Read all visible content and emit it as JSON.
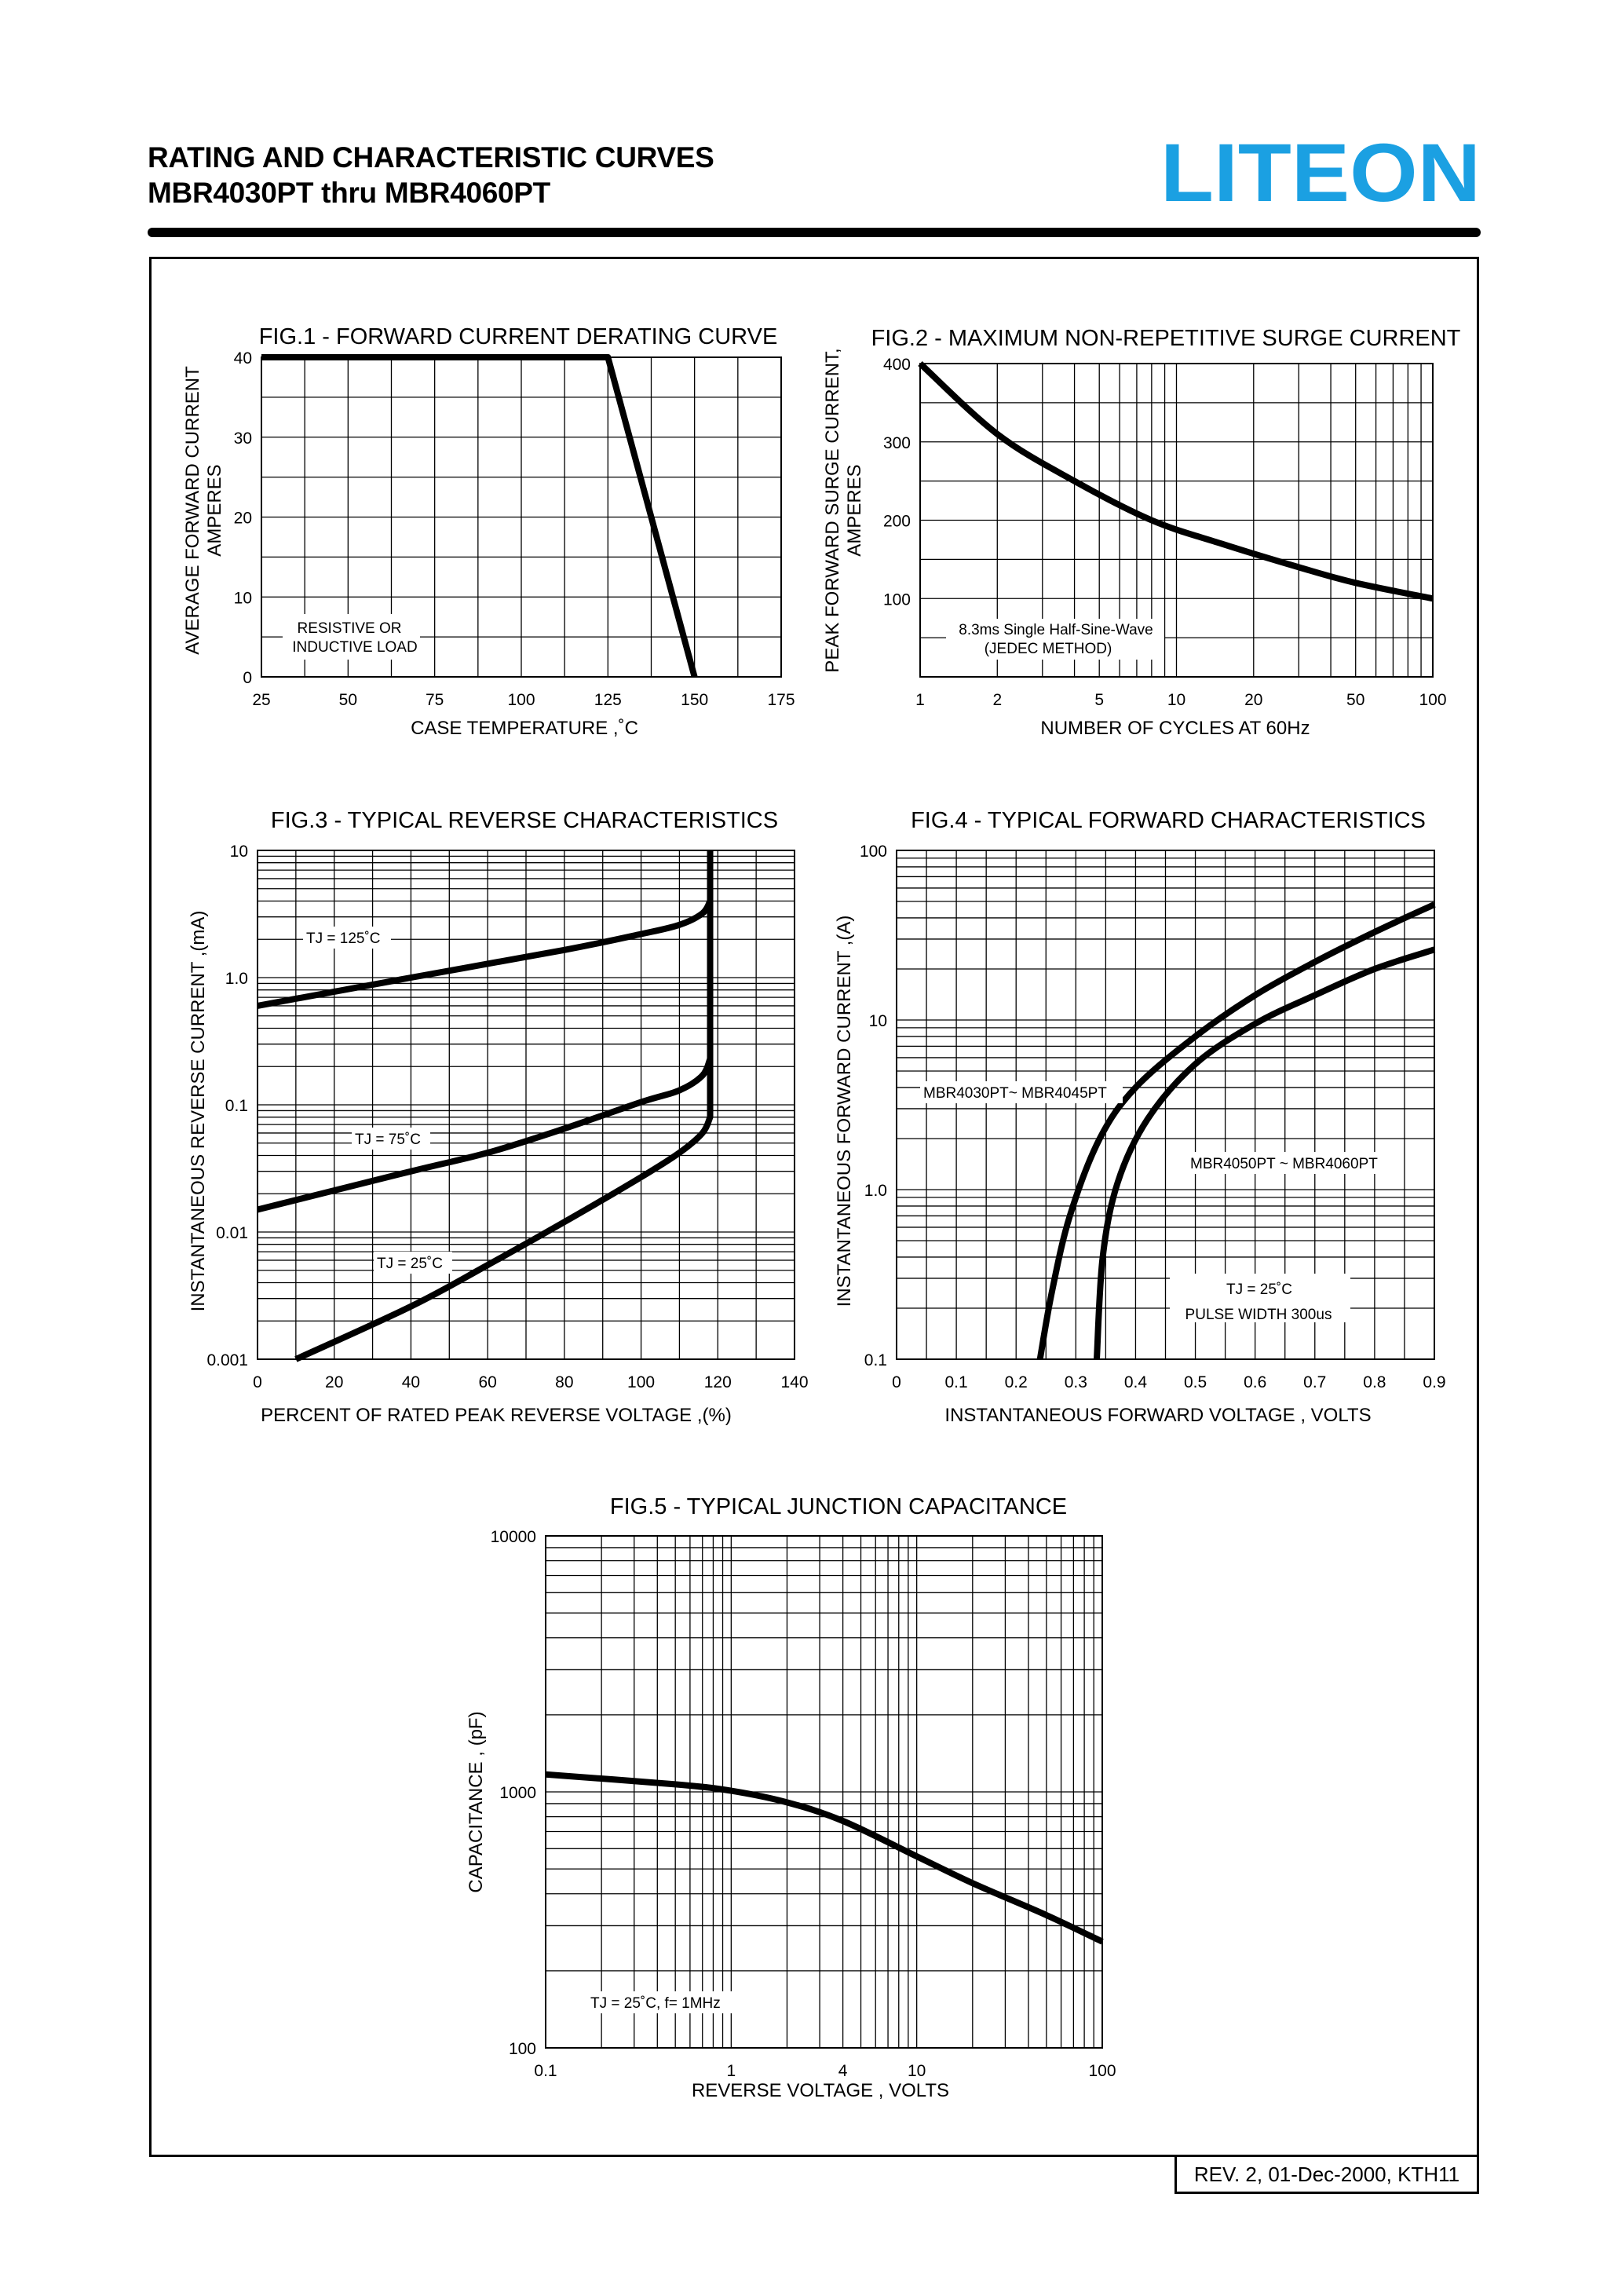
{
  "header": {
    "title_line1": "RATING AND CHARACTERISTIC CURVES",
    "title_line2": "MBR4030PT thru MBR4060PT",
    "logo_text": "LITEON",
    "brand_color": "#1ba0e2"
  },
  "footer": {
    "revision": "REV. 2, 01-Dec-2000, KTH11"
  },
  "chart_data": [
    {
      "id": "fig1",
      "type": "line",
      "title": "FIG.1 - FORWARD CURRENT DERATING CURVE",
      "xlabel": "CASE TEMPERATURE ,˚C",
      "ylabel": [
        "AVERAGE FORWARD CURRENT",
        "AMPERES"
      ],
      "xlim": [
        25,
        175
      ],
      "ylim": [
        0,
        40
      ],
      "xticks": [
        "25",
        "50",
        "75",
        "100",
        "125",
        "150",
        "175"
      ],
      "yticks": [
        "0",
        "10",
        "20",
        "30",
        "40"
      ],
      "annotation": [
        "RESISTIVE OR",
        "INDUCTIVE LOAD"
      ],
      "series": [
        {
          "points": [
            [
              25,
              40
            ],
            [
              125,
              40
            ],
            [
              150,
              0
            ]
          ]
        }
      ]
    },
    {
      "id": "fig2",
      "type": "line",
      "title": "FIG.2 - MAXIMUM NON-REPETITIVE SURGE CURRENT",
      "xlabel": "NUMBER OF CYCLES AT 60Hz",
      "ylabel": [
        "PEAK FORWARD SURGE CURRENT,",
        "AMPERES"
      ],
      "xscale": "log",
      "xlim": [
        1,
        100
      ],
      "ylim": [
        0,
        400
      ],
      "xticks": [
        "1",
        "2",
        "5",
        "10",
        "20",
        "50",
        "100"
      ],
      "yticks": [
        "100",
        "200",
        "300",
        "400"
      ],
      "annotation": [
        "8.3ms Single Half-Sine-Wave",
        "(JEDEC METHOD)"
      ],
      "series": [
        {
          "points": [
            [
              1,
              400
            ],
            [
              2,
              310
            ],
            [
              4,
              250
            ],
            [
              8,
              200
            ],
            [
              15,
              170
            ],
            [
              30,
              140
            ],
            [
              50,
              120
            ],
            [
              100,
              100
            ]
          ]
        }
      ]
    },
    {
      "id": "fig3",
      "type": "line",
      "title": "FIG.3 - TYPICAL REVERSE CHARACTERISTICS",
      "xlabel": "PERCENT OF RATED PEAK REVERSE VOLTAGE ,(%)",
      "ylabel": "INSTANTANEOUS REVERSE CURRENT ,(mA)",
      "yscale": "log",
      "xlim": [
        0,
        140
      ],
      "ylim": [
        0.001,
        10
      ],
      "xticks": [
        "0",
        "20",
        "40",
        "60",
        "80",
        "100",
        "120",
        "140"
      ],
      "yticks": [
        "0.001",
        "0.01",
        "0.1",
        "1.0",
        "10"
      ],
      "series": [
        {
          "name": "TJ = 125˚C",
          "points": [
            [
              0,
              0.6
            ],
            [
              40,
              1.0
            ],
            [
              80,
              1.65
            ],
            [
              100,
              2.2
            ],
            [
              110,
              2.6
            ],
            [
              116,
              3.2
            ],
            [
              118,
              4.0
            ],
            [
              118,
              10
            ]
          ]
        },
        {
          "name": "TJ = 75˚C",
          "points": [
            [
              0,
              0.015
            ],
            [
              40,
              0.03
            ],
            [
              60,
              0.042
            ],
            [
              80,
              0.065
            ],
            [
              100,
              0.105
            ],
            [
              110,
              0.13
            ],
            [
              116,
              0.17
            ],
            [
              118,
              0.23
            ],
            [
              118,
              4.0
            ]
          ]
        },
        {
          "name": "TJ = 25˚C",
          "points": [
            [
              10,
              0.001
            ],
            [
              40,
              0.0026
            ],
            [
              60,
              0.0055
            ],
            [
              80,
              0.012
            ],
            [
              100,
              0.027
            ],
            [
              110,
              0.042
            ],
            [
              116,
              0.06
            ],
            [
              118,
              0.08
            ],
            [
              118,
              0.23
            ]
          ]
        }
      ]
    },
    {
      "id": "fig4",
      "type": "line",
      "title": "FIG.4 - TYPICAL FORWARD CHARACTERISTICS",
      "xlabel": "INSTANTANEOUS FORWARD VOLTAGE , VOLTS",
      "ylabel": "INSTANTANEOUS  FORWARD CURRENT ,(A)",
      "yscale": "log",
      "xlim": [
        0,
        0.9
      ],
      "ylim": [
        0.1,
        100
      ],
      "xticks": [
        "0",
        "0.1",
        "0.2",
        "0.3",
        "0.4",
        "0.5",
        "0.6",
        "0.7",
        "0.8",
        "0.9"
      ],
      "yticks": [
        "0.1",
        "1.0",
        "10",
        "100"
      ],
      "annotations": [
        "TJ = 25˚C",
        "PULSE WIDTH 300us"
      ],
      "series": [
        {
          "name": "MBR4030PT~ MBR4045PT",
          "points": [
            [
              0.24,
              0.1
            ],
            [
              0.26,
              0.25
            ],
            [
              0.29,
              0.7
            ],
            [
              0.34,
              2.0
            ],
            [
              0.4,
              4.0
            ],
            [
              0.5,
              8.0
            ],
            [
              0.6,
              14.0
            ],
            [
              0.7,
              22.0
            ],
            [
              0.8,
              33.0
            ],
            [
              0.9,
              48.0
            ]
          ]
        },
        {
          "name": "MBR4050PT ~ MBR4060PT",
          "points": [
            [
              0.335,
              0.1
            ],
            [
              0.345,
              0.4
            ],
            [
              0.37,
              1.1
            ],
            [
              0.42,
              2.6
            ],
            [
              0.5,
              5.5
            ],
            [
              0.6,
              9.5
            ],
            [
              0.7,
              14.0
            ],
            [
              0.8,
              20.0
            ],
            [
              0.9,
              26.0
            ]
          ]
        }
      ]
    },
    {
      "id": "fig5",
      "type": "line",
      "title": "FIG.5 - TYPICAL JUNCTION CAPACITANCE",
      "xlabel": "REVERSE VOLTAGE , VOLTS",
      "ylabel": "CAPACITANCE , (pF)",
      "xscale": "log",
      "yscale": "log",
      "xlim": [
        0.1,
        100
      ],
      "ylim": [
        100,
        10000
      ],
      "xticks": [
        "0.1",
        "1",
        "4",
        "10",
        "100"
      ],
      "yticks": [
        "100",
        "1000",
        "10000"
      ],
      "annotation": "TJ = 25˚C,  f= 1MHz",
      "series": [
        {
          "points": [
            [
              0.1,
              1170
            ],
            [
              0.5,
              1070
            ],
            [
              1,
              1010
            ],
            [
              2,
              910
            ],
            [
              4,
              770
            ],
            [
              10,
              560
            ],
            [
              20,
              440
            ],
            [
              50,
              330
            ],
            [
              100,
              260
            ]
          ]
        }
      ]
    }
  ]
}
